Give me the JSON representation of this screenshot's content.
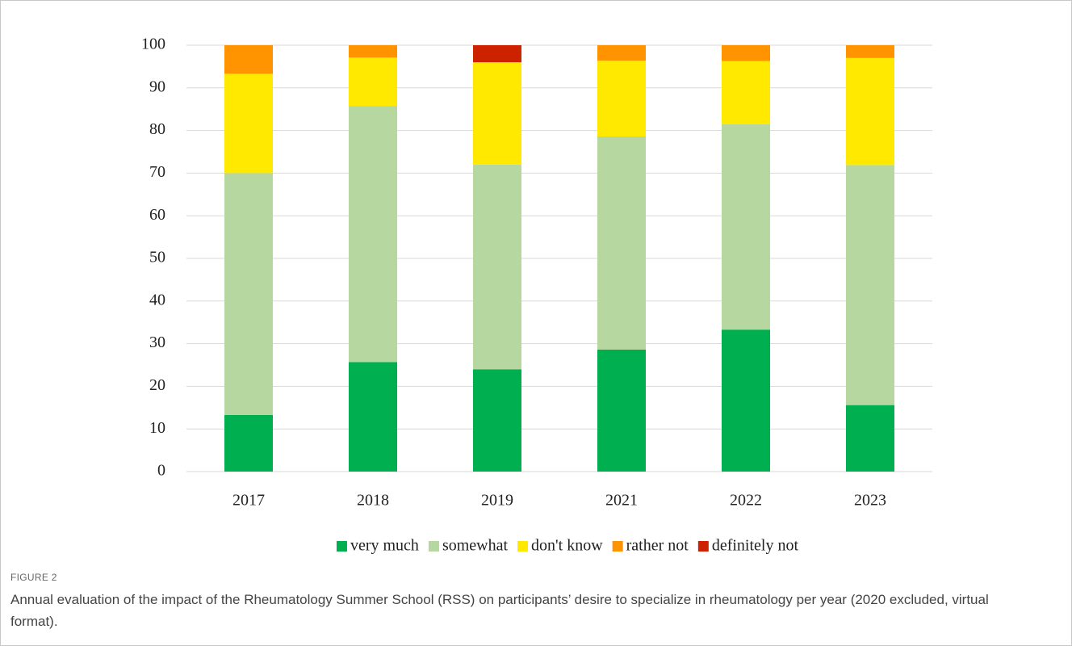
{
  "chart_data": {
    "type": "stacked_bar",
    "categories": [
      "2017",
      "2018",
      "2019",
      "2021",
      "2022",
      "2023"
    ],
    "series": [
      {
        "name": "very much",
        "color": "#00b050",
        "values": [
          13.3,
          25.7,
          24,
          28.6,
          33.3,
          15.6
        ]
      },
      {
        "name": "somewhat",
        "color": "#b6d7a0",
        "values": [
          56.7,
          60,
          48,
          50,
          48.2,
          56.3
        ]
      },
      {
        "name": "don't know",
        "color": "#ffe900",
        "values": [
          23.3,
          11.4,
          24,
          17.8,
          14.8,
          25.1
        ]
      },
      {
        "name": "rather not",
        "color": "#ff9300",
        "values": [
          6.7,
          2.9,
          0,
          3.6,
          3.7,
          3
        ]
      },
      {
        "name": "definitely not",
        "color": "#cc2200",
        "values": [
          0,
          0,
          4,
          0,
          0,
          0
        ]
      }
    ],
    "ylim": [
      0,
      100
    ],
    "yticks": [
      0,
      10,
      20,
      30,
      40,
      50,
      60,
      70,
      80,
      90,
      100
    ],
    "grid": true,
    "legend": "bottom",
    "figure_label": "FIGURE 2",
    "caption": "Annual evaluation of the impact of the Rheumatology Summer School (RSS) on participants’ desire to specialize in rheumatology per year (2020 excluded, virtual format)."
  }
}
